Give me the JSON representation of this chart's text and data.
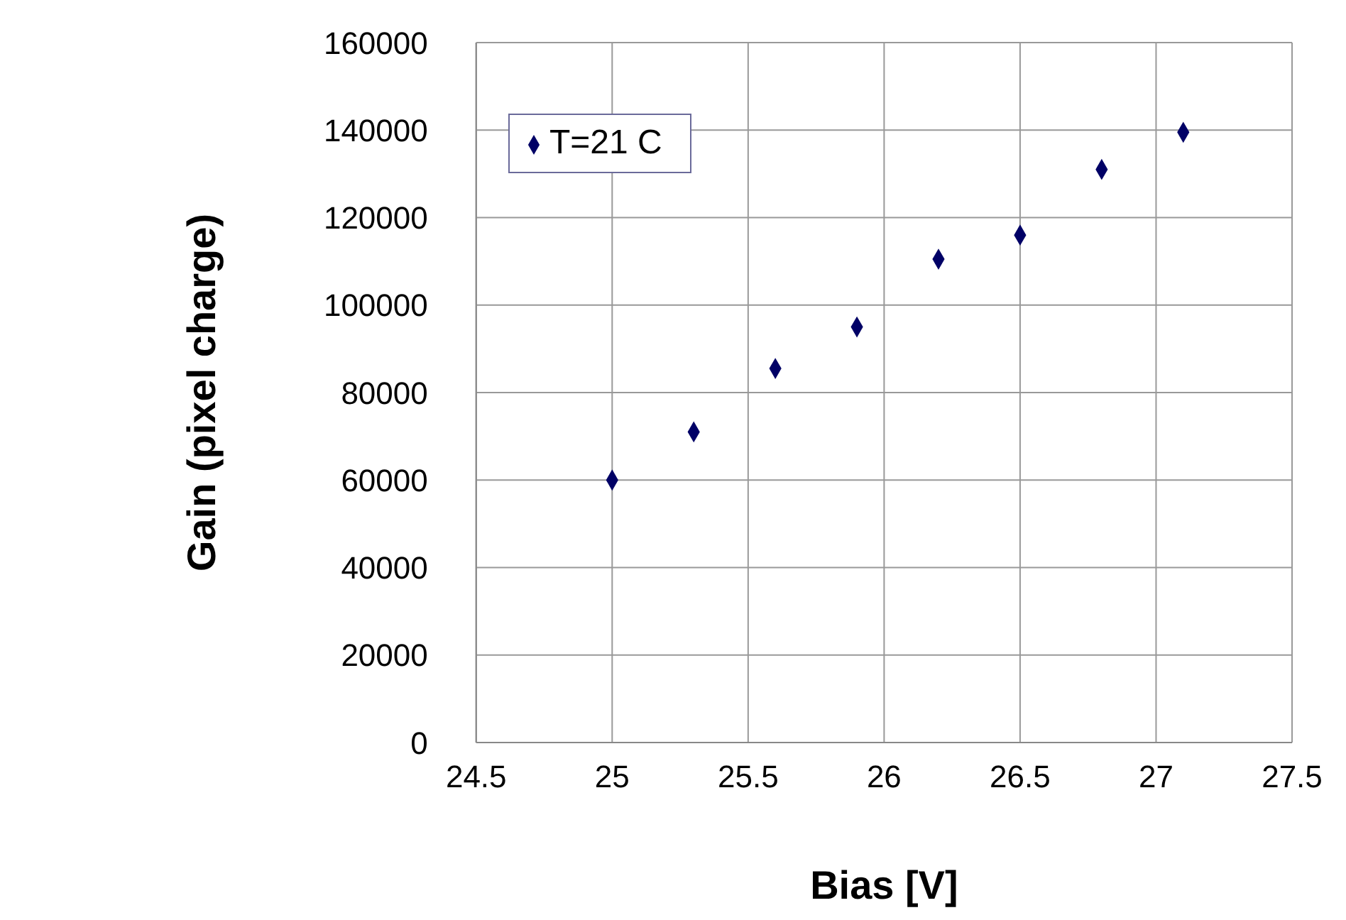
{
  "chart_data": {
    "type": "scatter",
    "xlabel": "Bias [V]",
    "ylabel": "Gain (pixel charge)",
    "x": [
      25,
      25.3,
      25.6,
      25.9,
      26.2,
      26.5,
      26.8,
      27.1
    ],
    "series": [
      {
        "name": "T=21 C",
        "color": "#000066",
        "values": [
          60000,
          71000,
          85500,
          95000,
          110500,
          116000,
          131000,
          139500
        ]
      }
    ],
    "xlim": [
      24.5,
      27.5
    ],
    "xticks": [
      24.5,
      25,
      25.5,
      26,
      26.5,
      27,
      27.5
    ],
    "ylim": [
      0,
      160000
    ],
    "yticks": [
      0,
      20000,
      40000,
      60000,
      80000,
      100000,
      120000,
      140000,
      160000
    ],
    "grid": true,
    "legend": "top left",
    "marker": "diamond"
  }
}
